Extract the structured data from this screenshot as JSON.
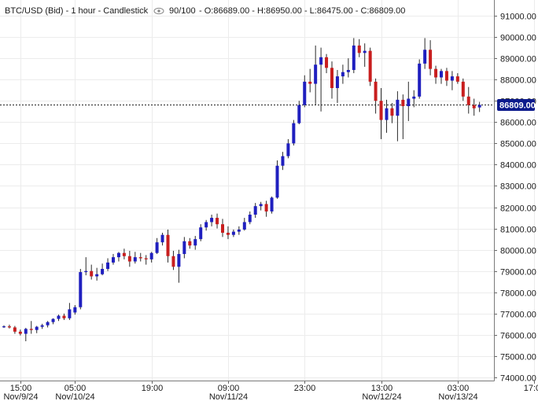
{
  "header": {
    "title": "BTC/USD (Bid) - 1 hour - Candlestick",
    "visibility_icon": "eye-icon",
    "bars_shown": "90/100",
    "ohlc": "O:86689.00 - H:86950.00 - L:86475.00 - C:86809.00"
  },
  "current_price_label": "86809.00",
  "colors": {
    "up": "#1f1fbf",
    "down": "#c81e1e",
    "price_tag": "#0c1a8c"
  },
  "chart_data": {
    "type": "candlestick",
    "title": "BTC/USD (Bid) - 1 hour - Candlestick",
    "xlabel": "",
    "ylabel": "",
    "ylim": [
      74000,
      91300
    ],
    "y_ticks": [
      74000,
      75000,
      76000,
      77000,
      78000,
      79000,
      80000,
      81000,
      82000,
      83000,
      84000,
      85000,
      86000,
      87000,
      88000,
      89000,
      90000,
      91000
    ],
    "y_tick_labels": [
      "74000.00",
      "75000.00",
      "76000.00",
      "77000.00",
      "78000.00",
      "79000.00",
      "80000.00",
      "81000.00",
      "82000.00",
      "83000.00",
      "84000.00",
      "85000.00",
      "86000.00",
      "87000.00",
      "88000.00",
      "89000.00",
      "90000.00",
      "91000.00"
    ],
    "x_ticks": [
      {
        "index": 3,
        "time": "15:00",
        "date": "Nov/9/24"
      },
      {
        "index": 13,
        "time": "05:00",
        "date": "Nov/10/24"
      },
      {
        "index": 27,
        "time": "19:00",
        "date": ""
      },
      {
        "index": 41,
        "time": "09:00",
        "date": "Nov/11/24"
      },
      {
        "index": 55,
        "time": "23:00",
        "date": ""
      },
      {
        "index": 69,
        "time": "13:00",
        "date": "Nov/12/24"
      },
      {
        "index": 83,
        "time": "03:00",
        "date": "Nov/13/24"
      },
      {
        "index": 97,
        "time": "17:00",
        "date": ""
      }
    ],
    "current_price": 86809,
    "grid": true,
    "candles": [
      {
        "o": 76380,
        "h": 76450,
        "l": 76330,
        "c": 76400
      },
      {
        "o": 76400,
        "h": 76480,
        "l": 76300,
        "c": 76350
      },
      {
        "o": 76350,
        "h": 76420,
        "l": 76050,
        "c": 76150
      },
      {
        "o": 76150,
        "h": 76250,
        "l": 75970,
        "c": 76050
      },
      {
        "o": 76050,
        "h": 76330,
        "l": 75700,
        "c": 76280
      },
      {
        "o": 76280,
        "h": 76650,
        "l": 76050,
        "c": 76230
      },
      {
        "o": 76230,
        "h": 76420,
        "l": 76080,
        "c": 76380
      },
      {
        "o": 76380,
        "h": 76520,
        "l": 76280,
        "c": 76450
      },
      {
        "o": 76450,
        "h": 76650,
        "l": 76350,
        "c": 76600
      },
      {
        "o": 76600,
        "h": 76780,
        "l": 76500,
        "c": 76750
      },
      {
        "o": 76750,
        "h": 76950,
        "l": 76650,
        "c": 76900
      },
      {
        "o": 76900,
        "h": 77000,
        "l": 76700,
        "c": 76780
      },
      {
        "o": 76780,
        "h": 77500,
        "l": 76700,
        "c": 77200
      },
      {
        "o": 77050,
        "h": 77400,
        "l": 76950,
        "c": 77300
      },
      {
        "o": 77300,
        "h": 79100,
        "l": 77200,
        "c": 78950
      },
      {
        "o": 78950,
        "h": 79650,
        "l": 78800,
        "c": 79000
      },
      {
        "o": 79000,
        "h": 79300,
        "l": 78600,
        "c": 78750
      },
      {
        "o": 78750,
        "h": 79150,
        "l": 78550,
        "c": 78850
      },
      {
        "o": 78850,
        "h": 79350,
        "l": 78800,
        "c": 79100
      },
      {
        "o": 79100,
        "h": 79600,
        "l": 79000,
        "c": 79400
      },
      {
        "o": 79400,
        "h": 79800,
        "l": 79300,
        "c": 79650
      },
      {
        "o": 79650,
        "h": 79900,
        "l": 79450,
        "c": 79850
      },
      {
        "o": 79850,
        "h": 80050,
        "l": 79550,
        "c": 79700
      },
      {
        "o": 79700,
        "h": 79950,
        "l": 79200,
        "c": 79450
      },
      {
        "o": 79450,
        "h": 79900,
        "l": 79350,
        "c": 79650
      },
      {
        "o": 79650,
        "h": 79850,
        "l": 79450,
        "c": 79600
      },
      {
        "o": 79600,
        "h": 79750,
        "l": 79300,
        "c": 79550
      },
      {
        "o": 79550,
        "h": 79900,
        "l": 79400,
        "c": 79850
      },
      {
        "o": 79850,
        "h": 80550,
        "l": 79800,
        "c": 80350
      },
      {
        "o": 80350,
        "h": 80800,
        "l": 80200,
        "c": 80700
      },
      {
        "o": 80700,
        "h": 80950,
        "l": 79400,
        "c": 79700
      },
      {
        "o": 79700,
        "h": 79950,
        "l": 79050,
        "c": 79200
      },
      {
        "o": 79200,
        "h": 80000,
        "l": 78450,
        "c": 79800
      },
      {
        "o": 79800,
        "h": 80600,
        "l": 79600,
        "c": 80400
      },
      {
        "o": 80400,
        "h": 80550,
        "l": 80050,
        "c": 80200
      },
      {
        "o": 80200,
        "h": 80650,
        "l": 80000,
        "c": 80500
      },
      {
        "o": 80500,
        "h": 81200,
        "l": 80400,
        "c": 81050
      },
      {
        "o": 81050,
        "h": 81400,
        "l": 80900,
        "c": 81300
      },
      {
        "o": 81300,
        "h": 81650,
        "l": 81100,
        "c": 81500
      },
      {
        "o": 81500,
        "h": 81700,
        "l": 81000,
        "c": 81200
      },
      {
        "o": 81200,
        "h": 81450,
        "l": 80600,
        "c": 80800
      },
      {
        "o": 80800,
        "h": 81100,
        "l": 80500,
        "c": 80700
      },
      {
        "o": 80700,
        "h": 80950,
        "l": 80600,
        "c": 80850
      },
      {
        "o": 80850,
        "h": 81100,
        "l": 80700,
        "c": 80950
      },
      {
        "o": 80950,
        "h": 81500,
        "l": 80900,
        "c": 81300
      },
      {
        "o": 81300,
        "h": 81800,
        "l": 81200,
        "c": 81650
      },
      {
        "o": 81650,
        "h": 82200,
        "l": 81500,
        "c": 82050
      },
      {
        "o": 82050,
        "h": 82250,
        "l": 81850,
        "c": 82150
      },
      {
        "o": 82150,
        "h": 82300,
        "l": 81550,
        "c": 81800
      },
      {
        "o": 81800,
        "h": 82500,
        "l": 81700,
        "c": 82450
      },
      {
        "o": 82450,
        "h": 84200,
        "l": 82400,
        "c": 83950
      },
      {
        "o": 83950,
        "h": 84600,
        "l": 83750,
        "c": 84400
      },
      {
        "o": 84400,
        "h": 85200,
        "l": 84300,
        "c": 85000
      },
      {
        "o": 85000,
        "h": 86100,
        "l": 84900,
        "c": 85950
      },
      {
        "o": 85950,
        "h": 87000,
        "l": 85900,
        "c": 86800
      },
      {
        "o": 86800,
        "h": 88200,
        "l": 86700,
        "c": 87900
      },
      {
        "o": 87900,
        "h": 88500,
        "l": 87400,
        "c": 87800
      },
      {
        "o": 87800,
        "h": 89600,
        "l": 86800,
        "c": 88700
      },
      {
        "o": 88700,
        "h": 89500,
        "l": 86500,
        "c": 89050
      },
      {
        "o": 89050,
        "h": 89200,
        "l": 88300,
        "c": 88550
      },
      {
        "o": 88550,
        "h": 88850,
        "l": 87100,
        "c": 87600
      },
      {
        "o": 87600,
        "h": 88450,
        "l": 86900,
        "c": 88150
      },
      {
        "o": 88150,
        "h": 88700,
        "l": 87800,
        "c": 88350
      },
      {
        "o": 88350,
        "h": 89000,
        "l": 88100,
        "c": 88450
      },
      {
        "o": 88450,
        "h": 89950,
        "l": 88300,
        "c": 89600
      },
      {
        "o": 89600,
        "h": 89900,
        "l": 89050,
        "c": 89250
      },
      {
        "o": 89250,
        "h": 89700,
        "l": 88600,
        "c": 89350
      },
      {
        "o": 89350,
        "h": 89500,
        "l": 87700,
        "c": 87900
      },
      {
        "o": 87900,
        "h": 88050,
        "l": 86400,
        "c": 87000
      },
      {
        "o": 87000,
        "h": 87600,
        "l": 85200,
        "c": 86100
      },
      {
        "o": 86100,
        "h": 87050,
        "l": 85500,
        "c": 86650
      },
      {
        "o": 86650,
        "h": 86900,
        "l": 85950,
        "c": 86300
      },
      {
        "o": 86300,
        "h": 87450,
        "l": 85100,
        "c": 87050
      },
      {
        "o": 87050,
        "h": 87300,
        "l": 85200,
        "c": 86750
      },
      {
        "o": 86750,
        "h": 87900,
        "l": 86050,
        "c": 87100
      },
      {
        "o": 87100,
        "h": 87500,
        "l": 86700,
        "c": 87200
      },
      {
        "o": 87200,
        "h": 88950,
        "l": 87100,
        "c": 88750
      },
      {
        "o": 88750,
        "h": 89950,
        "l": 88500,
        "c": 89400
      },
      {
        "o": 89400,
        "h": 89850,
        "l": 88200,
        "c": 88500
      },
      {
        "o": 88500,
        "h": 88650,
        "l": 87800,
        "c": 88100
      },
      {
        "o": 88100,
        "h": 88500,
        "l": 87800,
        "c": 88400
      },
      {
        "o": 88400,
        "h": 88550,
        "l": 87700,
        "c": 87950
      },
      {
        "o": 87950,
        "h": 88400,
        "l": 87500,
        "c": 88150
      },
      {
        "o": 88150,
        "h": 88300,
        "l": 87800,
        "c": 87900
      },
      {
        "o": 87900,
        "h": 88050,
        "l": 87000,
        "c": 87200
      },
      {
        "o": 87200,
        "h": 87650,
        "l": 86400,
        "c": 86800
      },
      {
        "o": 86800,
        "h": 87100,
        "l": 86300,
        "c": 86650
      },
      {
        "o": 86689,
        "h": 86950,
        "l": 86475,
        "c": 86809
      }
    ]
  }
}
